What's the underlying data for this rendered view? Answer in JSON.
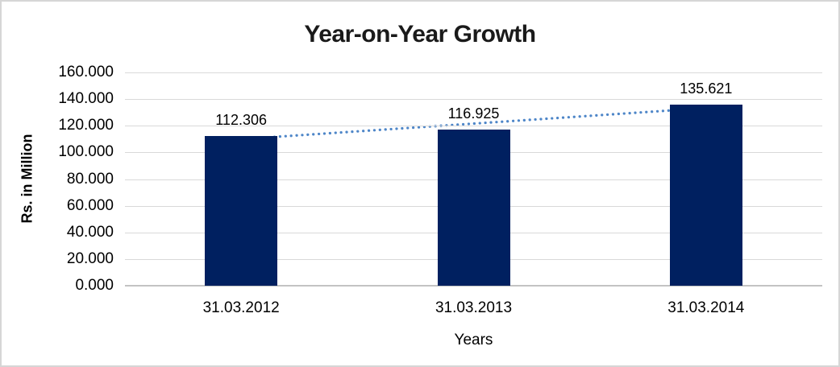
{
  "window": {
    "background": "#ffffff",
    "border_color": "#d6d6d6"
  },
  "chart_data": {
    "type": "bar",
    "title": "Year-on-Year Growth",
    "categories": [
      "31.03.2012",
      "31.03.2013",
      "31.03.2014"
    ],
    "values": [
      112.306,
      116.925,
      135.621
    ],
    "data_labels": [
      "112.306",
      "116.925",
      "135.621"
    ],
    "xlabel": "Years",
    "ylabel": "Rs. in Million",
    "ylim": [
      0,
      160
    ],
    "ytick_step": 20,
    "yticks": [
      "0.000",
      "20.000",
      "40.000",
      "60.000",
      "80.000",
      "100.000",
      "120.000",
      "140.000",
      "160.000"
    ],
    "grid": "horizontal",
    "legend": "none",
    "colors": {
      "bar": "#002060",
      "gridline": "#d9d9d9",
      "axis_line": "#c3c3c3",
      "text": "#000000",
      "title_text": "#1a1a1a"
    },
    "trendline": {
      "type": "linear",
      "style": "dotted",
      "color": "#4e86c8"
    }
  }
}
